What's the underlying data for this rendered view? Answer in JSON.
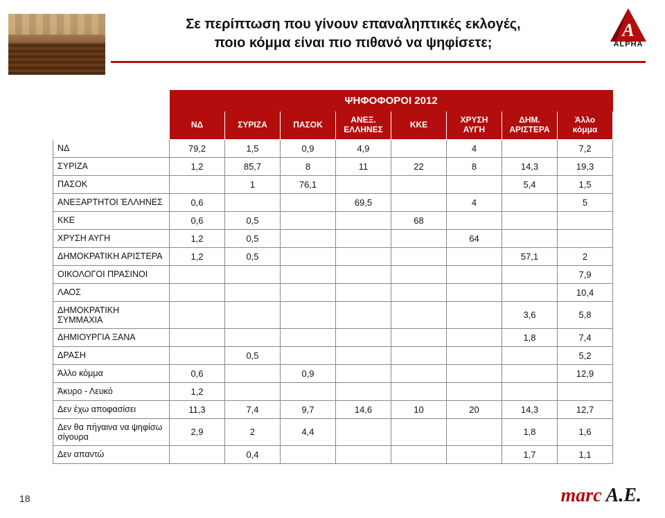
{
  "page_number": "18",
  "title_line1": "Σε περίπτωση που γίνουν επαναληπτικές εκλογές,",
  "title_line2": "ποιο κόμμα είναι πιο πιθανό να ψηφίσετε;",
  "logo": {
    "letter": "A",
    "text": "ALPHA",
    "color": "#b30d0d"
  },
  "footer": {
    "marc": "marc",
    "ae": "Α.Ε."
  },
  "table": {
    "group_header": "ΨΗΦΟΦΟΡΟΙ 2012",
    "columns": [
      "ΝΔ",
      "ΣΥΡΙΖΑ",
      "ΠΑΣΟΚ",
      "ΑΝΕΞ. ΕΛΛΗΝΕΣ",
      "ΚΚΕ",
      "ΧΡΥΣΗ ΑΥΓΗ",
      "ΔΗΜ. ΑΡΙΣΤΕΡΑ",
      "Άλλο κόμμα"
    ],
    "rows": [
      {
        "label": "ΝΔ",
        "cells": [
          "79,2",
          "1,5",
          "0,9",
          "4,9",
          "",
          "4",
          "",
          "7,2"
        ]
      },
      {
        "label": "ΣΥΡΙΖΑ",
        "cells": [
          "1,2",
          "85,7",
          "8",
          "11",
          "22",
          "8",
          "14,3",
          "19,3"
        ]
      },
      {
        "label": "ΠΑΣΟΚ",
        "cells": [
          "",
          "1",
          "76,1",
          "",
          "",
          "",
          "5,4",
          "1,5"
        ]
      },
      {
        "label": "ΑΝΕΞΑΡΤΗΤΟΙ ΈΛΛΗΝΕΣ",
        "cells": [
          "0,6",
          "",
          "",
          "69,5",
          "",
          "4",
          "",
          "5"
        ]
      },
      {
        "label": "ΚΚΕ",
        "cells": [
          "0,6",
          "0,5",
          "",
          "",
          "68",
          "",
          "",
          ""
        ]
      },
      {
        "label": "ΧΡΥΣΗ ΑΥΓΗ",
        "cells": [
          "1,2",
          "0,5",
          "",
          "",
          "",
          "64",
          "",
          ""
        ]
      },
      {
        "label": "ΔΗΜΟΚΡΑΤΙΚΗ ΑΡΙΣΤΕΡΑ",
        "cells": [
          "1,2",
          "0,5",
          "",
          "",
          "",
          "",
          "57,1",
          "2"
        ]
      },
      {
        "label": "ΟΙΚΟΛΟΓΟΙ ΠΡΑΣΙΝΟΙ",
        "cells": [
          "",
          "",
          "",
          "",
          "",
          "",
          "",
          "7,9"
        ]
      },
      {
        "label": "ΛΑΟΣ",
        "cells": [
          "",
          "",
          "",
          "",
          "",
          "",
          "",
          "10,4"
        ]
      },
      {
        "label": "ΔΗΜΟΚΡΑΤΙΚΗ ΣΥΜΜΑΧΙΑ",
        "cells": [
          "",
          "",
          "",
          "",
          "",
          "",
          "3,6",
          "5,8"
        ]
      },
      {
        "label": "ΔΗΜΙΟΥΡΓΙΑ ΞΑΝΑ",
        "cells": [
          "",
          "",
          "",
          "",
          "",
          "",
          "1,8",
          "7,4"
        ]
      },
      {
        "label": "ΔΡΑΣΗ",
        "cells": [
          "",
          "0,5",
          "",
          "",
          "",
          "",
          "",
          "5,2"
        ]
      },
      {
        "label": "Άλλο κόμμα",
        "cells": [
          "0,6",
          "",
          "0,9",
          "",
          "",
          "",
          "",
          "12,9"
        ]
      },
      {
        "label": "Άκυρο - Λευκό",
        "cells": [
          "1,2",
          "",
          "",
          "",
          "",
          "",
          "",
          ""
        ]
      },
      {
        "label": "Δεν έχω αποφασίσει",
        "cells": [
          "11,3",
          "7,4",
          "9,7",
          "14,6",
          "10",
          "20",
          "14,3",
          "12,7"
        ]
      },
      {
        "label": "Δεν θα πήγαινα να ψηφίσω σίγουρα",
        "cells": [
          "2,9",
          "2",
          "4,4",
          "",
          "",
          "",
          "1,8",
          "1,6"
        ]
      },
      {
        "label": "Δεν απαντώ",
        "cells": [
          "",
          "0,4",
          "",
          "",
          "",
          "",
          "1,7",
          "1,1"
        ]
      }
    ],
    "header_bg": "#b30d0d",
    "header_fg": "#ffffff",
    "border_color": "#888888",
    "font_size_header": 12,
    "font_size_cell": 13
  }
}
